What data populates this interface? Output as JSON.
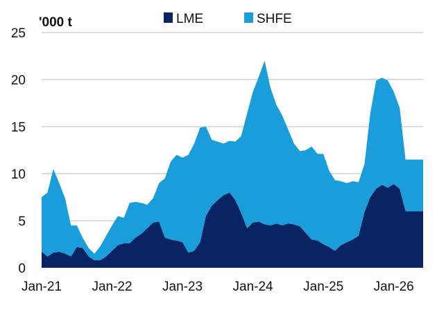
{
  "chart_data": {
    "type": "area",
    "stacked": true,
    "unit_label": "'000 t",
    "title": "",
    "xlabel": "",
    "ylabel": "",
    "ylim": [
      0,
      25
    ],
    "y_ticks": [
      0,
      5,
      10,
      15,
      20,
      25
    ],
    "x_ticks": [
      "Jan-21",
      "Jan-22",
      "Jan-23",
      "Jan-24",
      "Jan-25",
      "Jan-26"
    ],
    "grid": true,
    "legend_position": "top-center",
    "x": [
      "2021-01",
      "2021-02",
      "2021-03",
      "2021-04",
      "2021-05",
      "2021-06",
      "2021-07",
      "2021-08",
      "2021-09",
      "2021-10",
      "2021-11",
      "2021-12",
      "2022-01",
      "2022-02",
      "2022-03",
      "2022-04",
      "2022-05",
      "2022-06",
      "2022-07",
      "2022-08",
      "2022-09",
      "2022-10",
      "2022-11",
      "2022-12",
      "2023-01",
      "2023-02",
      "2023-03",
      "2023-04",
      "2023-05",
      "2023-06",
      "2023-07",
      "2023-08",
      "2023-09",
      "2023-10",
      "2023-11",
      "2023-12",
      "2024-01",
      "2024-02",
      "2024-03",
      "2024-04",
      "2024-05",
      "2024-06",
      "2024-07",
      "2024-08",
      "2024-09",
      "2024-10",
      "2024-11",
      "2024-12",
      "2025-01",
      "2025-02",
      "2025-03",
      "2025-04",
      "2025-05",
      "2025-06",
      "2025-07",
      "2025-08",
      "2025-09",
      "2025-10",
      "2025-11",
      "2025-12",
      "2026-01",
      "2026-02",
      "2026-03",
      "2026-04",
      "2026-05",
      "2026-06"
    ],
    "series": [
      {
        "name": "LME",
        "color": "#0a2463",
        "values": [
          1.7,
          1.2,
          1.6,
          1.7,
          1.5,
          1.2,
          2.2,
          2.1,
          1.2,
          0.8,
          0.8,
          1.2,
          1.8,
          2.4,
          2.6,
          2.6,
          3.2,
          3.6,
          4.2,
          4.8,
          4.9,
          3.2,
          3.0,
          2.9,
          2.7,
          1.6,
          1.8,
          2.7,
          5.5,
          6.6,
          7.2,
          7.7,
          8.0,
          7.2,
          5.8,
          4.2,
          4.8,
          4.9,
          4.6,
          4.5,
          4.7,
          4.5,
          4.7,
          4.6,
          4.4,
          3.7,
          3.0,
          2.9,
          2.5,
          2.2,
          1.8,
          2.4,
          2.7,
          3.0,
          3.4,
          5.9,
          7.5,
          8.4,
          8.8,
          8.5,
          8.9,
          8.4,
          6.0,
          6.0,
          6.0,
          6.0
        ]
      },
      {
        "name": "SHFE",
        "color": "#1a9edb",
        "values": [
          5.8,
          6.8,
          8.9,
          7.3,
          5.9,
          3.3,
          2.3,
          1.1,
          0.9,
          0.7,
          1.5,
          2.2,
          2.7,
          3.1,
          2.7,
          4.3,
          3.8,
          3.3,
          2.5,
          2.6,
          4.1,
          6.3,
          8.3,
          9.1,
          9.0,
          10.4,
          11.4,
          12.2,
          9.5,
          7.0,
          6.2,
          5.5,
          5.5,
          6.2,
          8.2,
          12.2,
          13.9,
          15.4,
          17.4,
          14.6,
          12.6,
          11.7,
          10.0,
          8.6,
          8.0,
          8.8,
          9.9,
          9.2,
          9.6,
          8.1,
          7.5,
          6.8,
          6.3,
          6.2,
          5.7,
          5.1,
          8.9,
          11.5,
          11.4,
          11.4,
          9.8,
          8.6,
          5.5,
          5.5,
          5.5,
          5.5
        ]
      }
    ]
  },
  "legend": {
    "items": [
      {
        "label": "LME",
        "color": "#0a2463"
      },
      {
        "label": "SHFE",
        "color": "#1a9edb"
      }
    ]
  }
}
